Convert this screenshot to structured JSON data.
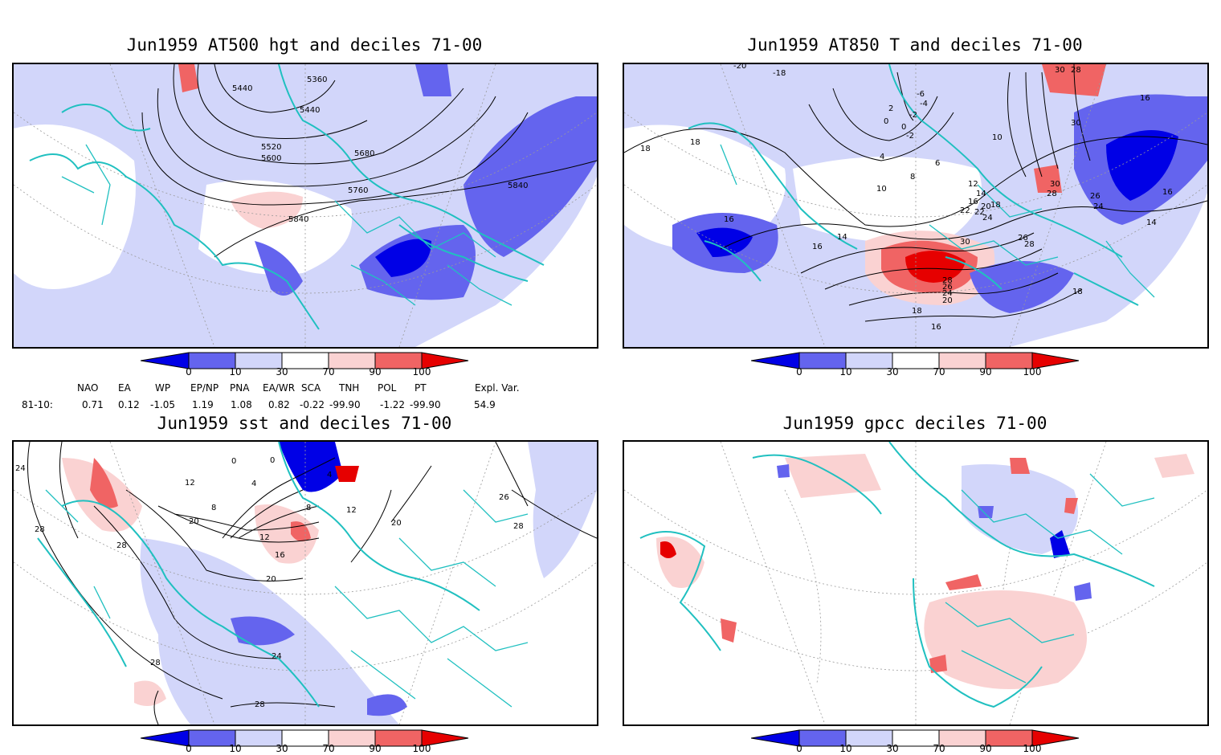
{
  "panels": {
    "p1": {
      "title": "Jun1959 AT500 hgt and deciles 71-00",
      "contour_labels": [
        "5360",
        "5440",
        "5440",
        "5520",
        "5600",
        "5680",
        "5760",
        "5840",
        "5840"
      ]
    },
    "p2": {
      "title": "Jun1959 AT850 T and deciles 71-00",
      "contour_labels": [
        "-20",
        "-18",
        "-6",
        "-4",
        "-2",
        "0",
        "0",
        "-2",
        "2",
        "4",
        "6",
        "8",
        "10",
        "10",
        "12",
        "14",
        "16",
        "18",
        "20",
        "22",
        "24",
        "26",
        "28",
        "30",
        "30",
        "28",
        "30",
        "26",
        "24",
        "16",
        "16",
        "14",
        "16",
        "16",
        "14",
        "18",
        "18",
        "16",
        "18",
        "28",
        "26",
        "24",
        "20",
        "18",
        "22",
        "28",
        "30"
      ]
    },
    "p3": {
      "title": "Jun1959 sst and deciles 71-00",
      "contour_labels": [
        "24",
        "28",
        "28",
        "12",
        "20",
        "0",
        "0",
        "4",
        "4",
        "8",
        "8",
        "12",
        "16",
        "20",
        "24",
        "28",
        "12",
        "20",
        "26",
        "28",
        "28"
      ]
    },
    "p4": {
      "title": "Jun1959 gpcc deciles 71-00"
    }
  },
  "colorbar": {
    "ticks": [
      "0",
      "10",
      "30",
      "70",
      "90",
      "100"
    ],
    "colors": [
      "#0000e6",
      "#6464ee",
      "#d2d6fa",
      "#ffffff",
      "#fad2d2",
      "#f06464",
      "#e60000"
    ]
  },
  "indices": {
    "headers": [
      "NAO",
      "EA",
      "WP",
      "EP/NP",
      "PNA",
      "EA/WR",
      "SCA",
      "TNH",
      "POL",
      "PT",
      "Expl. Var."
    ],
    "row_label": "81-10:",
    "values": [
      "0.71",
      "0.12",
      "-1.05",
      "1.19",
      "1.08",
      "0.82",
      "-0.22",
      "-99.90",
      "-1.22",
      "-99.90",
      "54.9"
    ]
  },
  "colors": {
    "coast": "#20c0c0",
    "contour": "#000000",
    "grid": "#9a9a9a"
  }
}
